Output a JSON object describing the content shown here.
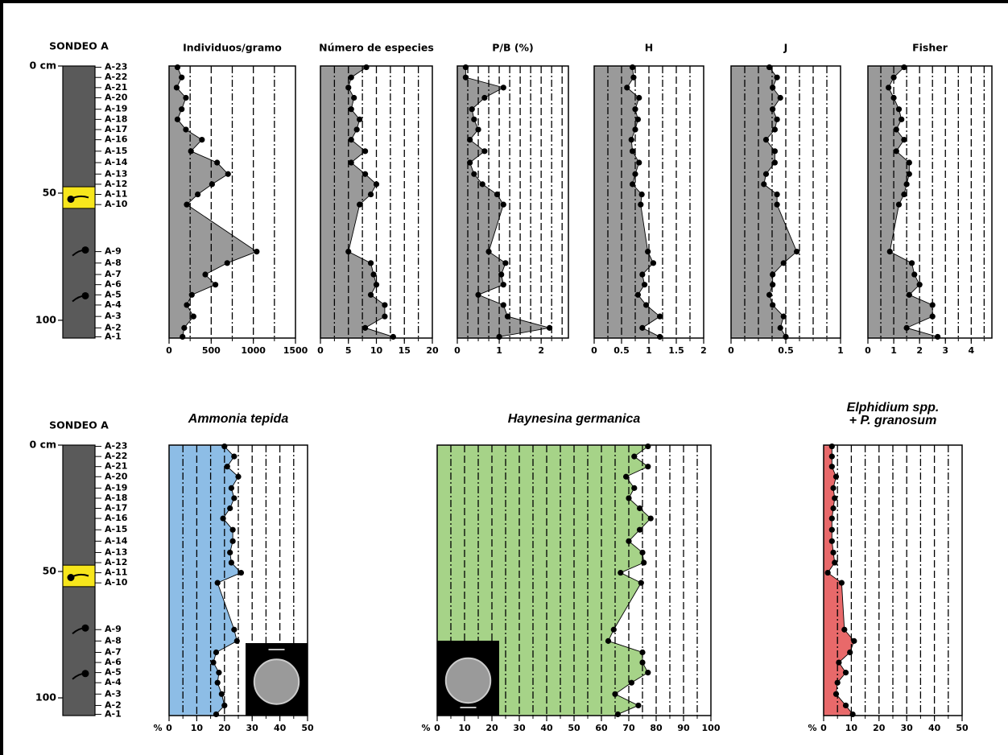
{
  "chart_data": [
    {
      "type": "core",
      "title": "SONDEO A",
      "ylim": [
        0,
        107
      ],
      "yticks": [
        {
          "value": 0,
          "label": "0 cm"
        },
        50,
        100
      ],
      "samples": [
        "A-23",
        "A-22",
        "A-21",
        "A-20",
        "A-19",
        "A-18",
        "A-17",
        "A-16",
        "A-15",
        "A-14",
        "A-13",
        "A-12",
        "A-11",
        "A-10",
        "A-9",
        "A-8",
        "A-7",
        "A-6",
        "A-5",
        "A-4",
        "A-3",
        "A-2",
        "A-1"
      ],
      "depths": [
        0.5,
        4.5,
        8.5,
        12.5,
        17,
        21,
        25,
        29,
        33.5,
        38,
        42.5,
        46.5,
        50.5,
        54.5,
        73,
        77.5,
        82,
        86,
        90,
        94,
        98.5,
        103,
        106.5
      ],
      "core_color": "#5a5a5a",
      "yellow_interval": [
        47.5,
        56
      ],
      "yellow_color": "#f7e61c"
    },
    {
      "type": "profile",
      "title": "Individuos/gramo",
      "xlim": [
        0,
        1500
      ],
      "xticks": [
        0,
        500,
        1000,
        1500
      ],
      "minor_xticks": [
        250,
        500,
        750,
        1000,
        1250
      ],
      "color": "#9a9a9a",
      "values": [
        100,
        150,
        90,
        200,
        150,
        100,
        200,
        390,
        260,
        570,
        700,
        510,
        340,
        210,
        1040,
        690,
        430,
        550,
        270,
        210,
        290,
        180,
        160
      ]
    },
    {
      "type": "profile",
      "title": "Número de especies",
      "xlim": [
        0,
        20
      ],
      "xticks": [
        0,
        5,
        10,
        15,
        20
      ],
      "minor_xticks": [
        2.5,
        5,
        7.5,
        10,
        12.5,
        15,
        17.5
      ],
      "color": "#9a9a9a",
      "values": [
        8.2,
        5.5,
        5,
        6,
        5.5,
        7,
        6.5,
        5.5,
        8,
        5.5,
        8,
        10,
        9,
        7,
        5,
        9,
        9.5,
        10,
        9,
        11.5,
        11.5,
        8,
        13
      ]
    },
    {
      "type": "profile",
      "title": "P/B (%)",
      "xlim": [
        0,
        2.65
      ],
      "xticks": [
        0,
        1,
        2
      ],
      "minor_xticks": [
        0.25,
        0.5,
        0.75,
        1,
        1.25,
        1.5,
        1.75,
        2,
        2.25,
        2.5
      ],
      "color": "#9a9a9a",
      "values": [
        0.2,
        0.2,
        1.1,
        0.65,
        0.35,
        0.4,
        0.5,
        0.3,
        0.65,
        0.3,
        0.4,
        0.6,
        0.95,
        1.1,
        0.75,
        1.15,
        1.05,
        1.1,
        0.5,
        1.1,
        1.2,
        2.2,
        1.0
      ]
    },
    {
      "type": "profile",
      "title": "H",
      "xlim": [
        0,
        2
      ],
      "xticks": [
        0,
        0.5,
        1,
        1.5,
        2
      ],
      "minor_xticks": [
        0.25,
        0.5,
        0.75,
        1,
        1.25,
        1.5,
        1.75
      ],
      "color": "#9a9a9a",
      "values": [
        0.7,
        0.72,
        0.6,
        0.82,
        0.75,
        0.8,
        0.75,
        0.68,
        0.7,
        0.82,
        0.75,
        0.7,
        0.87,
        0.85,
        0.98,
        1.08,
        0.88,
        0.92,
        0.8,
        0.95,
        1.2,
        0.88,
        1.2
      ]
    },
    {
      "type": "profile",
      "title": "J",
      "xlim": [
        0,
        1
      ],
      "xticks": [
        0,
        0.5,
        1
      ],
      "minor_xticks": [
        0.125,
        0.25,
        0.375,
        0.5,
        0.625,
        0.75,
        0.875
      ],
      "color": "#9a9a9a",
      "values": [
        0.35,
        0.42,
        0.38,
        0.45,
        0.38,
        0.42,
        0.4,
        0.32,
        0.4,
        0.4,
        0.32,
        0.3,
        0.42,
        0.42,
        0.6,
        0.48,
        0.38,
        0.38,
        0.35,
        0.38,
        0.48,
        0.45,
        0.5
      ]
    },
    {
      "type": "profile",
      "title": "Fisher",
      "xlim": [
        0,
        4.8
      ],
      "xticks": [
        0,
        1,
        2,
        3,
        4
      ],
      "minor_xticks": [
        0.5,
        1,
        1.5,
        2,
        2.5,
        3,
        3.5,
        4,
        4.5
      ],
      "color": "#9a9a9a",
      "values": [
        1.4,
        1.0,
        0.8,
        1.0,
        1.2,
        1.3,
        1.1,
        1.4,
        1.1,
        1.6,
        1.6,
        1.5,
        1.4,
        1.2,
        0.85,
        1.7,
        1.8,
        2.0,
        1.6,
        2.5,
        2.5,
        1.5,
        2.7
      ]
    },
    {
      "type": "profile",
      "title": "Ammonia tepida",
      "x_unit": "%",
      "xlim": [
        0,
        50
      ],
      "xticks": [
        0,
        10,
        20,
        30,
        40,
        50
      ],
      "minor_xticks": [
        5,
        10,
        15,
        20,
        25,
        30,
        35,
        40,
        45
      ],
      "color": "#8dbde6",
      "values": [
        20,
        23.5,
        21,
        25,
        22.5,
        23.5,
        22,
        19.5,
        23,
        23,
        22,
        22.5,
        26,
        17.5,
        23.5,
        24.5,
        17,
        16,
        18,
        17.5,
        19,
        20,
        17
      ]
    },
    {
      "type": "profile",
      "title": "Haynesina germanica",
      "x_unit": "%",
      "xlim": [
        0,
        100
      ],
      "xticks": [
        0,
        10,
        20,
        30,
        40,
        50,
        60,
        70,
        80,
        90,
        100
      ],
      "minor_xticks": [
        5,
        10,
        15,
        20,
        25,
        30,
        35,
        40,
        45,
        50,
        55,
        60,
        65,
        70,
        75,
        80,
        85,
        90,
        95
      ],
      "color": "#a6d388",
      "values": [
        77,
        72,
        77,
        69,
        72,
        70,
        74,
        78,
        74,
        70,
        75,
        75.5,
        67,
        74.5,
        64.5,
        62.5,
        75,
        75,
        77,
        71,
        65,
        73.5,
        66
      ]
    },
    {
      "type": "profile",
      "title_lines": [
        "Elphidium spp.",
        "+ P. granosum"
      ],
      "x_unit": "%",
      "xlim": [
        0,
        50
      ],
      "xticks": [
        0,
        10,
        20,
        30,
        40,
        50
      ],
      "minor_xticks": [
        5,
        10,
        15,
        20,
        25,
        30,
        35,
        40,
        45
      ],
      "color": "#e8696a",
      "values": [
        3,
        3,
        3,
        4.5,
        3.5,
        4,
        3.5,
        3,
        3,
        3,
        3.5,
        4,
        1.5,
        6.5,
        7.5,
        11,
        9.5,
        5.5,
        8,
        5,
        4.5,
        8,
        10.5
      ]
    }
  ]
}
